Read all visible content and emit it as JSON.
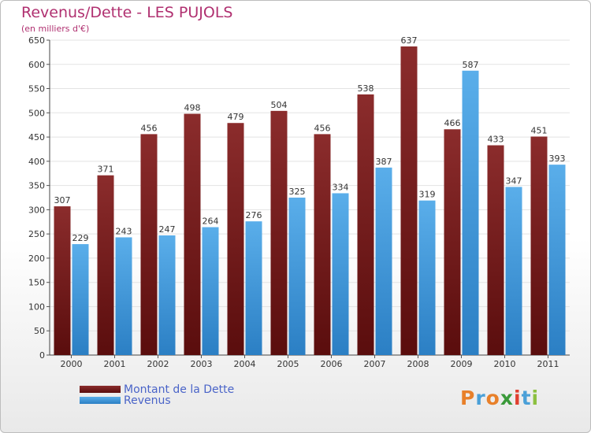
{
  "title": "Revenus/Dette - LES PUJOLS",
  "subtitle": "(en milliers d'€)",
  "logo_text": "Proxiti",
  "colors": {
    "title": "#b03070",
    "dette_top": "#8b2c2c",
    "dette_bottom": "#5a0d0d",
    "revenus_top": "#5aaeea",
    "revenus_bottom": "#2b7fc4",
    "grid": "#e3e3e3",
    "legend_text": "#4a64c8"
  },
  "chart_data": {
    "type": "bar",
    "title": "Revenus/Dette - LES PUJOLS",
    "subtitle": "(en milliers d'€)",
    "categories": [
      "2000",
      "2001",
      "2002",
      "2003",
      "2004",
      "2005",
      "2006",
      "2007",
      "2008",
      "2009",
      "2010",
      "2011"
    ],
    "series": [
      {
        "name": "Montant de la Dette",
        "values": [
          307,
          371,
          456,
          498,
          479,
          504,
          456,
          538,
          637,
          466,
          433,
          451
        ]
      },
      {
        "name": "Revenus",
        "values": [
          229,
          243,
          247,
          264,
          276,
          325,
          334,
          387,
          319,
          587,
          347,
          393
        ]
      }
    ],
    "ylim": [
      0,
      650
    ],
    "yticks": [
      0,
      50,
      100,
      150,
      200,
      250,
      300,
      350,
      400,
      450,
      500,
      550,
      600,
      650
    ],
    "grid": true,
    "legend_position": "bottom-left"
  }
}
